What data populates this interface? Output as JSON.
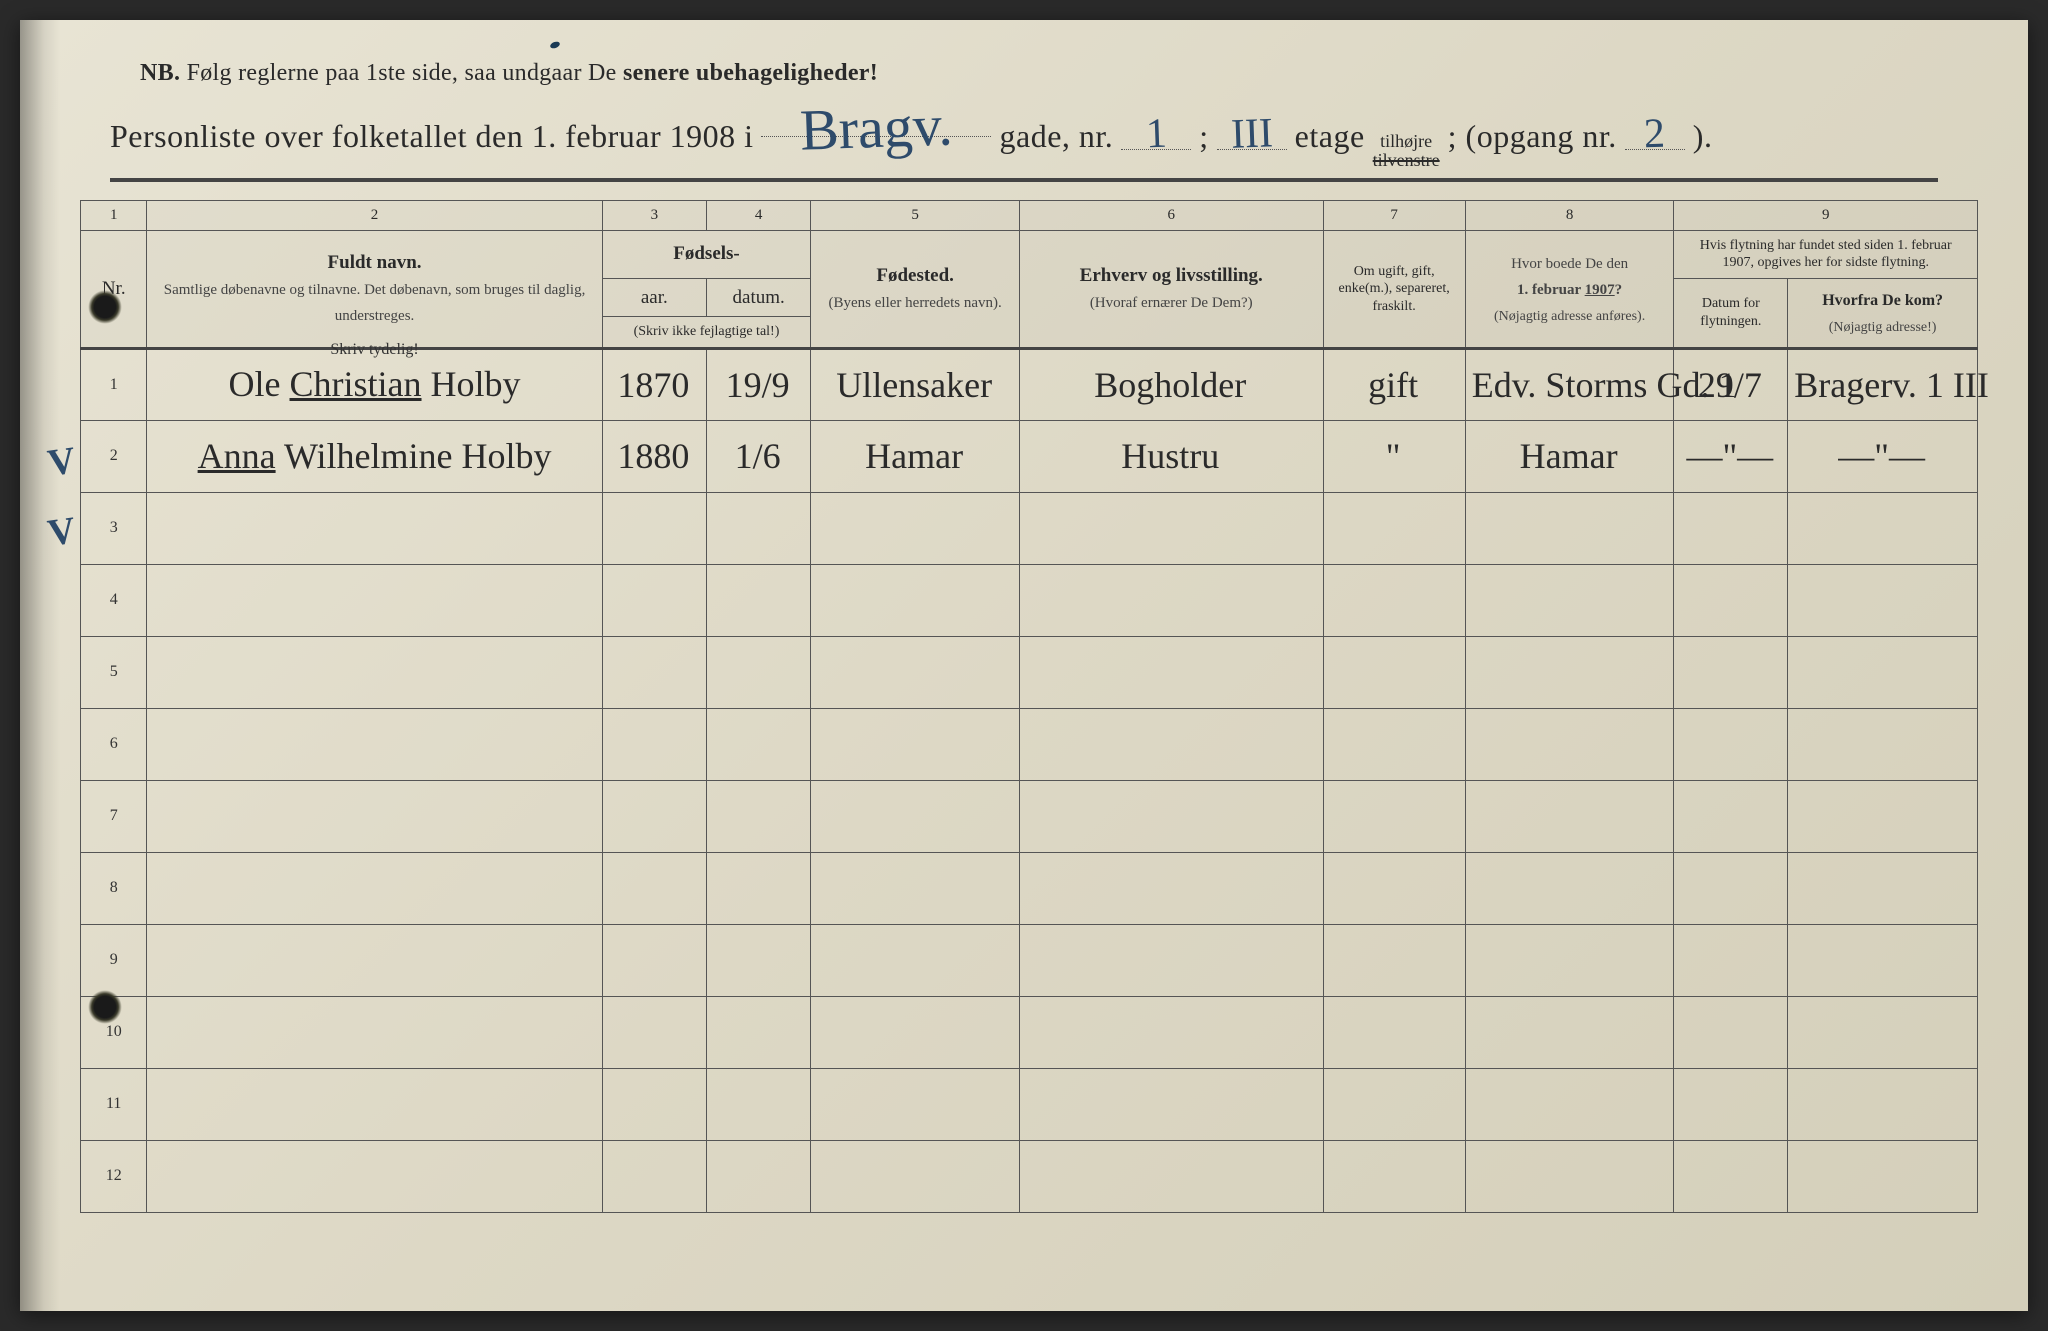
{
  "colors": {
    "paper_bg_start": "#e8e4d4",
    "paper_bg_mid": "#ddd8c5",
    "paper_bg_end": "#d4cfba",
    "ink_printed": "#2a2a2a",
    "ink_handwritten": "#2e4b6b",
    "rule_line": "#555555"
  },
  "typography": {
    "printed_font": "Georgia / Times New Roman",
    "handwritten_font": "Brush Script style cursive",
    "nb_fontsize_pt": 18,
    "title_fontsize_pt": 24,
    "header_fontsize_pt": 14,
    "hand_fontsize_pt": 28
  },
  "nb": {
    "prefix": "NB.",
    "text_1": "Følg reglerne paa 1ste side, saa undgaar De",
    "text_2": "senere ubehageligheder!"
  },
  "title": {
    "lead": "Personliste over folketallet den 1. februar 1908 i",
    "street_hand": "Bragv.",
    "gade_label": "gade, nr.",
    "gade_nr": "1",
    "semicolon": ";",
    "etage_hand": "III",
    "etage_label": "etage",
    "tilhojre": "tilhøjre",
    "tilvenstre": "tilvenstre",
    "opgang_label": "; (opgang nr.",
    "opgang_nr": "2",
    "close": ")."
  },
  "columns": {
    "widths_pct": [
      3.5,
      24,
      5.5,
      5.5,
      11,
      16,
      7.5,
      11,
      6,
      10
    ],
    "numbers": [
      "1",
      "2",
      "3",
      "4",
      "5",
      "6",
      "7",
      "8",
      "9"
    ],
    "c1": "Nr.",
    "c2_title": "Fuldt navn.",
    "c2_sub": "Samtlige døbenavne og tilnavne. Det døbenavn, som bruges til daglig, understreges.",
    "c34_group": "Fødsels-",
    "c3": "aar.",
    "c4": "datum.",
    "c34_note": "(Skriv ikke fejlagtige tal!)",
    "c5_title": "Fødested.",
    "c5_sub": "(Byens eller herredets navn).",
    "c6_title": "Erhverv og livsstilling.",
    "c6_sub": "(Hvoraf ernærer De Dem?)",
    "c7": "Om ugift, gift, enke(m.), separeret, fraskilt.",
    "c8_title": "Hvor boede De den 1. februar 1907?",
    "c8_sub": "(Nøjagtig adresse anføres).",
    "c9_top": "Hvis flytning har fundet sted siden 1. februar 1907, opgives her for sidste flytning.",
    "c9a": "Datum for flytningen.",
    "c9b_title": "Hvorfra De kom?",
    "c9b_sub": "(Nøjagtig adresse!)",
    "instruction": "Skriv tydelig!"
  },
  "rows": [
    {
      "nr": "1",
      "margin_mark": "V",
      "name_html": "Ole <u>Christian</u> Holby",
      "year": "1870",
      "date": "19/9",
      "birthplace": "Ullensaker",
      "occupation": "Bogholder",
      "status": "gift",
      "addr1907": "Edv. Storms Gd. 1",
      "move_date": "29/7",
      "from": "Bragerv. 1 III"
    },
    {
      "nr": "2",
      "margin_mark": "V",
      "name_html": "<u>Anna</u> Wilhelmine Holby",
      "year": "1880",
      "date": "1/6",
      "birthplace": "Hamar",
      "occupation": "Hustru",
      "status": "\"",
      "addr1907": "Hamar",
      "move_date": "—\"—",
      "from": "—\"—"
    }
  ],
  "empty_rows": [
    "3",
    "4",
    "5",
    "6",
    "7",
    "8",
    "9",
    "10",
    "11",
    "12"
  ]
}
